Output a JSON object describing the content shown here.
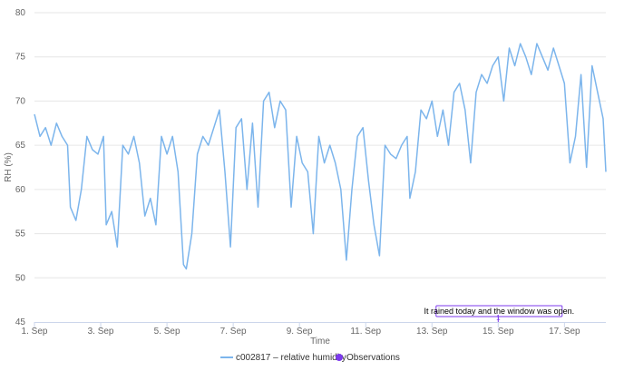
{
  "chart_data": {
    "type": "line",
    "title": "",
    "xlabel": "Time",
    "ylabel": "RH (%)",
    "ylim": [
      45,
      80
    ],
    "xlim": [
      "2024-09-01T00:00",
      "2024-09-18T06:00"
    ],
    "y_ticks": [
      45,
      50,
      55,
      60,
      65,
      70,
      75,
      80
    ],
    "x_ticks": [
      {
        "date": "2024-09-01",
        "label": "1. Sep"
      },
      {
        "date": "2024-09-03",
        "label": "3. Sep"
      },
      {
        "date": "2024-09-05",
        "label": "5. Sep"
      },
      {
        "date": "2024-09-07",
        "label": "7. Sep"
      },
      {
        "date": "2024-09-09",
        "label": "9. Sep"
      },
      {
        "date": "2024-09-11",
        "label": "11. Sep"
      },
      {
        "date": "2024-09-13",
        "label": "13. Sep"
      },
      {
        "date": "2024-09-15",
        "label": "15. Sep"
      },
      {
        "date": "2024-09-17",
        "label": "17. Sep"
      }
    ],
    "grid": true,
    "legend_position": "bottom",
    "series": [
      {
        "name": "c002817 – relative humidity",
        "color": "#7cb5ec",
        "points": [
          [
            "2024-09-01T00:00",
            68.5
          ],
          [
            "2024-09-01T04:00",
            66
          ],
          [
            "2024-09-01T08:00",
            67
          ],
          [
            "2024-09-01T12:00",
            65
          ],
          [
            "2024-09-01T16:00",
            67.5
          ],
          [
            "2024-09-01T20:00",
            66
          ],
          [
            "2024-09-02T00:00",
            65
          ],
          [
            "2024-09-02T02:00",
            58
          ],
          [
            "2024-09-02T06:00",
            56.5
          ],
          [
            "2024-09-02T10:00",
            60
          ],
          [
            "2024-09-02T14:00",
            66
          ],
          [
            "2024-09-02T18:00",
            64.5
          ],
          [
            "2024-09-02T22:00",
            64
          ],
          [
            "2024-09-03T02:00",
            66
          ],
          [
            "2024-09-03T04:00",
            56
          ],
          [
            "2024-09-03T08:00",
            57.5
          ],
          [
            "2024-09-03T12:00",
            53.5
          ],
          [
            "2024-09-03T16:00",
            65
          ],
          [
            "2024-09-03T20:00",
            64
          ],
          [
            "2024-09-04T00:00",
            66
          ],
          [
            "2024-09-04T04:00",
            63
          ],
          [
            "2024-09-04T08:00",
            57
          ],
          [
            "2024-09-04T12:00",
            59
          ],
          [
            "2024-09-04T16:00",
            56
          ],
          [
            "2024-09-04T20:00",
            66
          ],
          [
            "2024-09-05T00:00",
            64
          ],
          [
            "2024-09-05T04:00",
            66
          ],
          [
            "2024-09-05T08:00",
            62
          ],
          [
            "2024-09-05T12:00",
            51.5
          ],
          [
            "2024-09-05T14:00",
            51
          ],
          [
            "2024-09-05T18:00",
            55
          ],
          [
            "2024-09-05T22:00",
            64
          ],
          [
            "2024-09-06T02:00",
            66
          ],
          [
            "2024-09-06T06:00",
            65
          ],
          [
            "2024-09-06T10:00",
            67
          ],
          [
            "2024-09-06T14:00",
            69
          ],
          [
            "2024-09-06T18:00",
            62
          ],
          [
            "2024-09-06T22:00",
            53.5
          ],
          [
            "2024-09-07T02:00",
            67
          ],
          [
            "2024-09-07T06:00",
            68
          ],
          [
            "2024-09-07T10:00",
            60
          ],
          [
            "2024-09-07T14:00",
            67.5
          ],
          [
            "2024-09-07T18:00",
            58
          ],
          [
            "2024-09-07T22:00",
            70
          ],
          [
            "2024-09-08T02:00",
            71
          ],
          [
            "2024-09-08T06:00",
            67
          ],
          [
            "2024-09-08T10:00",
            70
          ],
          [
            "2024-09-08T14:00",
            69
          ],
          [
            "2024-09-08T18:00",
            58
          ],
          [
            "2024-09-08T22:00",
            66
          ],
          [
            "2024-09-09T02:00",
            63
          ],
          [
            "2024-09-09T06:00",
            62
          ],
          [
            "2024-09-09T10:00",
            55
          ],
          [
            "2024-09-09T14:00",
            66
          ],
          [
            "2024-09-09T18:00",
            63
          ],
          [
            "2024-09-09T22:00",
            65
          ],
          [
            "2024-09-10T02:00",
            63
          ],
          [
            "2024-09-10T06:00",
            60
          ],
          [
            "2024-09-10T10:00",
            52
          ],
          [
            "2024-09-10T14:00",
            60
          ],
          [
            "2024-09-10T18:00",
            66
          ],
          [
            "2024-09-10T22:00",
            67
          ],
          [
            "2024-09-11T02:00",
            61
          ],
          [
            "2024-09-11T06:00",
            56
          ],
          [
            "2024-09-11T10:00",
            52.5
          ],
          [
            "2024-09-11T14:00",
            65
          ],
          [
            "2024-09-11T18:00",
            64
          ],
          [
            "2024-09-11T22:00",
            63.5
          ],
          [
            "2024-09-12T02:00",
            65
          ],
          [
            "2024-09-12T06:00",
            66
          ],
          [
            "2024-09-12T08:00",
            59
          ],
          [
            "2024-09-12T12:00",
            62
          ],
          [
            "2024-09-12T16:00",
            69
          ],
          [
            "2024-09-12T20:00",
            68
          ],
          [
            "2024-09-13T00:00",
            70
          ],
          [
            "2024-09-13T04:00",
            66
          ],
          [
            "2024-09-13T08:00",
            69
          ],
          [
            "2024-09-13T12:00",
            65
          ],
          [
            "2024-09-13T16:00",
            71
          ],
          [
            "2024-09-13T20:00",
            72
          ],
          [
            "2024-09-14T00:00",
            69
          ],
          [
            "2024-09-14T04:00",
            63
          ],
          [
            "2024-09-14T08:00",
            71
          ],
          [
            "2024-09-14T12:00",
            73
          ],
          [
            "2024-09-14T16:00",
            72
          ],
          [
            "2024-09-14T20:00",
            74
          ],
          [
            "2024-09-15T00:00",
            75
          ],
          [
            "2024-09-15T04:00",
            70
          ],
          [
            "2024-09-15T08:00",
            76
          ],
          [
            "2024-09-15T12:00",
            74
          ],
          [
            "2024-09-15T16:00",
            76.5
          ],
          [
            "2024-09-15T20:00",
            75
          ],
          [
            "2024-09-16T00:00",
            73
          ],
          [
            "2024-09-16T04:00",
            76.5
          ],
          [
            "2024-09-16T08:00",
            75
          ],
          [
            "2024-09-16T12:00",
            73.5
          ],
          [
            "2024-09-16T16:00",
            76
          ],
          [
            "2024-09-16T20:00",
            74
          ],
          [
            "2024-09-17T00:00",
            72
          ],
          [
            "2024-09-17T04:00",
            63
          ],
          [
            "2024-09-17T08:00",
            66
          ],
          [
            "2024-09-17T12:00",
            73
          ],
          [
            "2024-09-17T16:00",
            62.5
          ],
          [
            "2024-09-17T20:00",
            74
          ],
          [
            "2024-09-18T00:00",
            71
          ],
          [
            "2024-09-18T04:00",
            68
          ],
          [
            "2024-09-18T06:00",
            62
          ]
        ]
      }
    ],
    "legend": [
      {
        "label": "c002817 – relative humidity",
        "symbol": "line",
        "color": "#7cb5ec"
      },
      {
        "label": "Observations",
        "symbol": "circle",
        "color": "#7c3aed"
      }
    ],
    "annotation": {
      "date": "2024-09-15T00:00",
      "text": "It rained today and the window was open.",
      "marker_label": "1",
      "color": "#7c3aed"
    }
  }
}
